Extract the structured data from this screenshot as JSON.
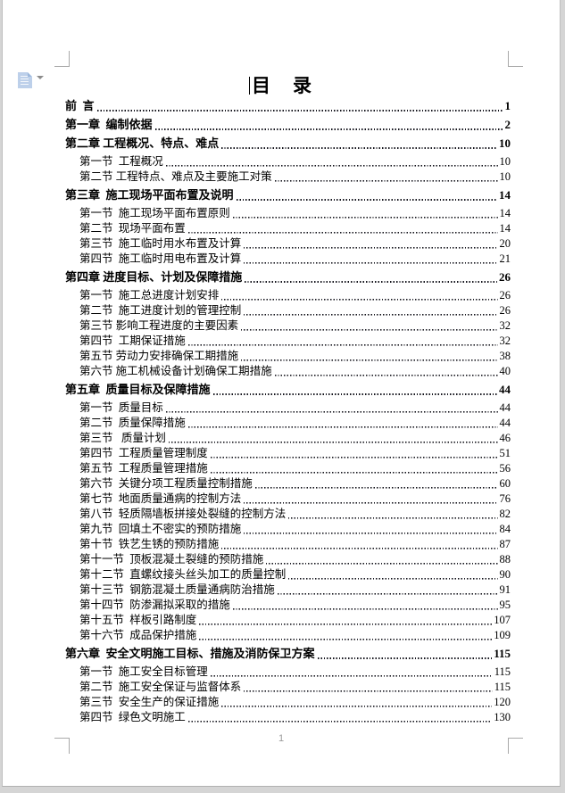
{
  "document": {
    "title": "目　录",
    "footer_page_number": "1"
  },
  "toc_control": {
    "doc_icon": "toc-document-icon",
    "dropdown_icon": "chevron-down-icon"
  },
  "colors": {
    "text": "#000000",
    "icon_blue": "#bdd0ea",
    "crop_mark_gray": "#a9a9a9",
    "footer_gray": "#9a9a9a",
    "page_bg": "#ffffff",
    "outer_bg": "#d5d5d5"
  },
  "toc": {
    "entries": [
      {
        "level": "chapter",
        "label": "前  言",
        "page": "1"
      },
      {
        "level": "chapter",
        "label": "第一章  编制依据",
        "page": "2"
      },
      {
        "level": "chapter",
        "label": "第二章 工程概况、特点、难点",
        "page": "10"
      },
      {
        "level": "section",
        "label": "第一节  工程概况",
        "page": "10"
      },
      {
        "level": "section",
        "label": "第二节 工程特点、难点及主要施工对策",
        "page": "10"
      },
      {
        "level": "chapter",
        "label": "第三章  施工现场平面布置及说明",
        "page": "14"
      },
      {
        "level": "section",
        "label": "第一节  施工现场平面布置原则",
        "page": "14"
      },
      {
        "level": "section",
        "label": "第二节  现场平面布置",
        "page": "14"
      },
      {
        "level": "section",
        "label": "第三节  施工临时用水布置及计算",
        "page": "20"
      },
      {
        "level": "section",
        "label": "第四节  施工临时用电布置及计算",
        "page": "21"
      },
      {
        "level": "chapter",
        "label": "第四章 进度目标、计划及保障措施",
        "page": "26"
      },
      {
        "level": "section",
        "label": "第一节  施工总进度计划安排",
        "page": "26"
      },
      {
        "level": "section",
        "label": "第二节  施工进度计划的管理控制",
        "page": "26"
      },
      {
        "level": "section",
        "label": "第三节 影响工程进度的主要因素",
        "page": "32"
      },
      {
        "level": "section",
        "label": "第四节  工期保证措施",
        "page": "32"
      },
      {
        "level": "section",
        "label": "第五节 劳动力安排确保工期措施",
        "page": "38"
      },
      {
        "level": "section",
        "label": "第六节 施工机械设备计划确保工期措施",
        "page": "40"
      },
      {
        "level": "chapter",
        "label": "第五章  质量目标及保障措施",
        "page": "44"
      },
      {
        "level": "section",
        "label": "第一节  质量目标",
        "page": "44"
      },
      {
        "level": "section",
        "label": "第二节  质量保障措施",
        "page": "44"
      },
      {
        "level": "section",
        "label": "第三节   质量计划",
        "page": "46"
      },
      {
        "level": "section",
        "label": "第四节  工程质量管理制度",
        "page": "51"
      },
      {
        "level": "section",
        "label": "第五节  工程质量管理措施",
        "page": "56"
      },
      {
        "level": "section",
        "label": "第六节  关键分项工程质量控制措施",
        "page": "60"
      },
      {
        "level": "section",
        "label": "第七节  地面质量通病的控制方法",
        "page": "76"
      },
      {
        "level": "section",
        "label": "第八节  轻质隔墙板拼接处裂缝的控制方法",
        "page": "82"
      },
      {
        "level": "section",
        "label": "第九节  回填土不密实的预防措施",
        "page": "84"
      },
      {
        "level": "section",
        "label": "第十节  铁艺生锈的预防措施",
        "page": "87"
      },
      {
        "level": "section",
        "label": "第十一节  顶板混凝土裂缝的预防措施",
        "page": "88"
      },
      {
        "level": "section",
        "label": "第十二节  直螺纹接头丝头加工的质量控制",
        "page": "90"
      },
      {
        "level": "section",
        "label": "第十三节  钢筋混凝土质量通病防治措施",
        "page": "91"
      },
      {
        "level": "section",
        "label": "第十四节  防渗漏拟采取的措施",
        "page": "95"
      },
      {
        "level": "section",
        "label": "第十五节  样板引路制度",
        "page": "107"
      },
      {
        "level": "section",
        "label": "第十六节  成品保护措施",
        "page": "109"
      },
      {
        "level": "chapter",
        "label": "第六章  安全文明施工目标、措施及消防保卫方案",
        "page": "115"
      },
      {
        "level": "section",
        "label": "第一节  施工安全目标管理",
        "page": "115"
      },
      {
        "level": "section",
        "label": "第二节  施工安全保证与监督体系",
        "page": "115"
      },
      {
        "level": "section",
        "label": "第三节  安全生产的保证措施",
        "page": "120"
      },
      {
        "level": "section",
        "label": "第四节  绿色文明施工",
        "page": "130"
      }
    ]
  }
}
